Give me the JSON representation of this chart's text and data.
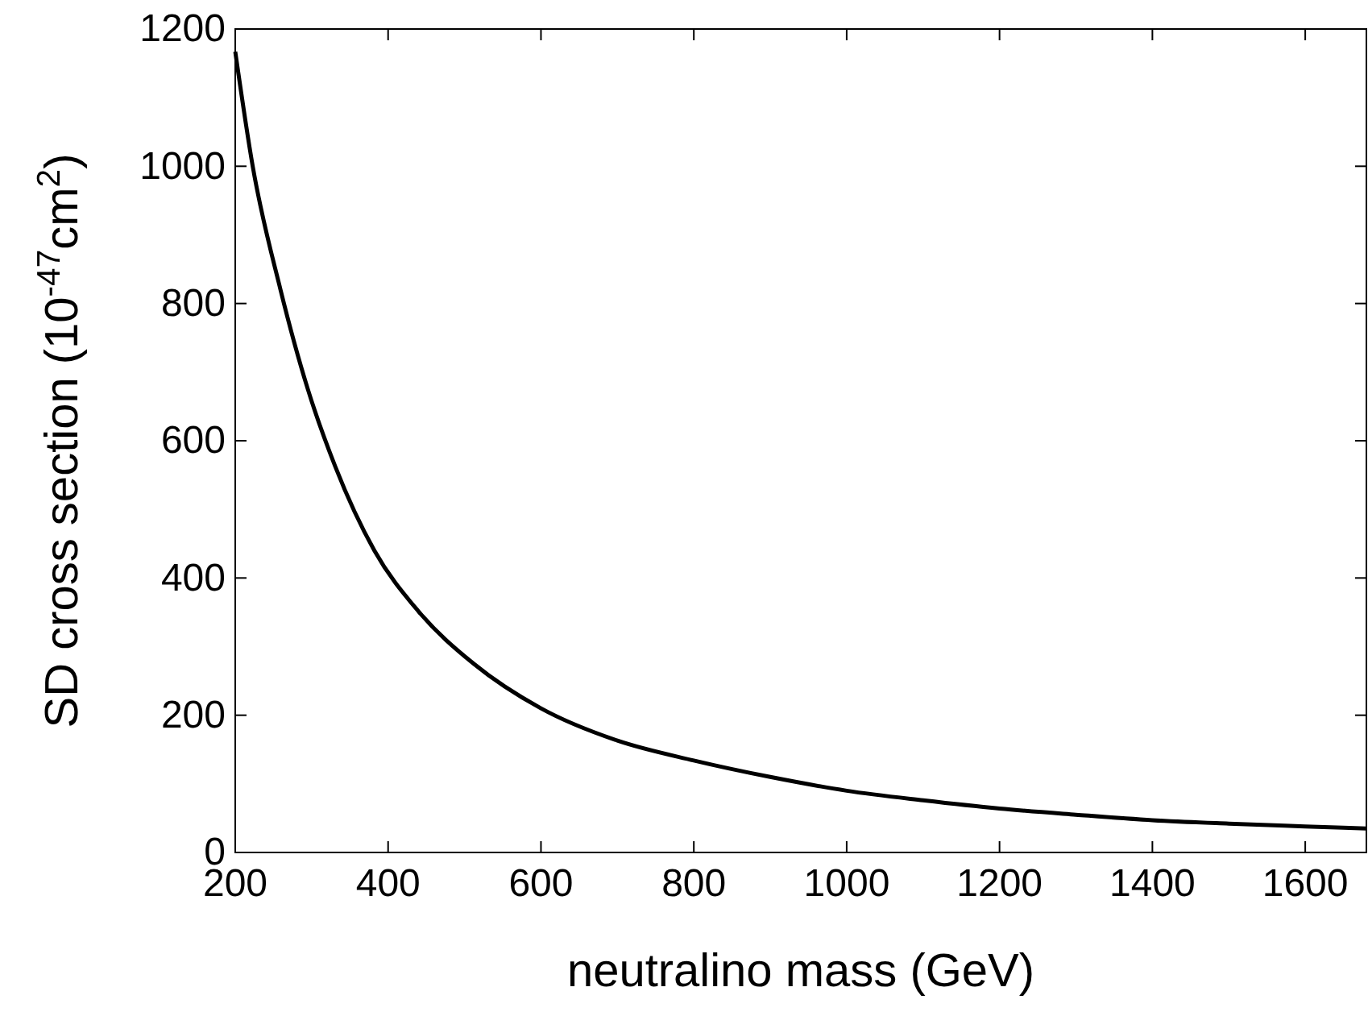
{
  "chart_data": {
    "type": "line",
    "xlabel": "neutralino mass (GeV)",
    "ylabel": "SD cross section (10$^{-47}$cm$^{2}$)",
    "x": [
      200,
      223,
      259,
      295,
      331,
      382,
      440,
      512,
      600,
      700,
      800,
      900,
      1000,
      1100,
      1200,
      1300,
      1400,
      1500,
      1600,
      1680
    ],
    "series": [
      {
        "color": "#000000",
        "values": [
          1167,
          999,
          821,
          675,
          562,
          440,
          351,
          275,
          210,
          163,
          134,
          110,
          90,
          76,
          64,
          55,
          47,
          42,
          38,
          35
        ]
      }
    ],
    "xlim": [
      200,
      1680
    ],
    "ylim": [
      0,
      1200
    ],
    "xticks": [
      200,
      400,
      600,
      800,
      1000,
      1200,
      1400,
      1600
    ],
    "yticks": [
      0,
      200,
      400,
      600,
      800,
      1000,
      1200
    ],
    "grid": false,
    "marker": "none",
    "line_style": "solid"
  }
}
